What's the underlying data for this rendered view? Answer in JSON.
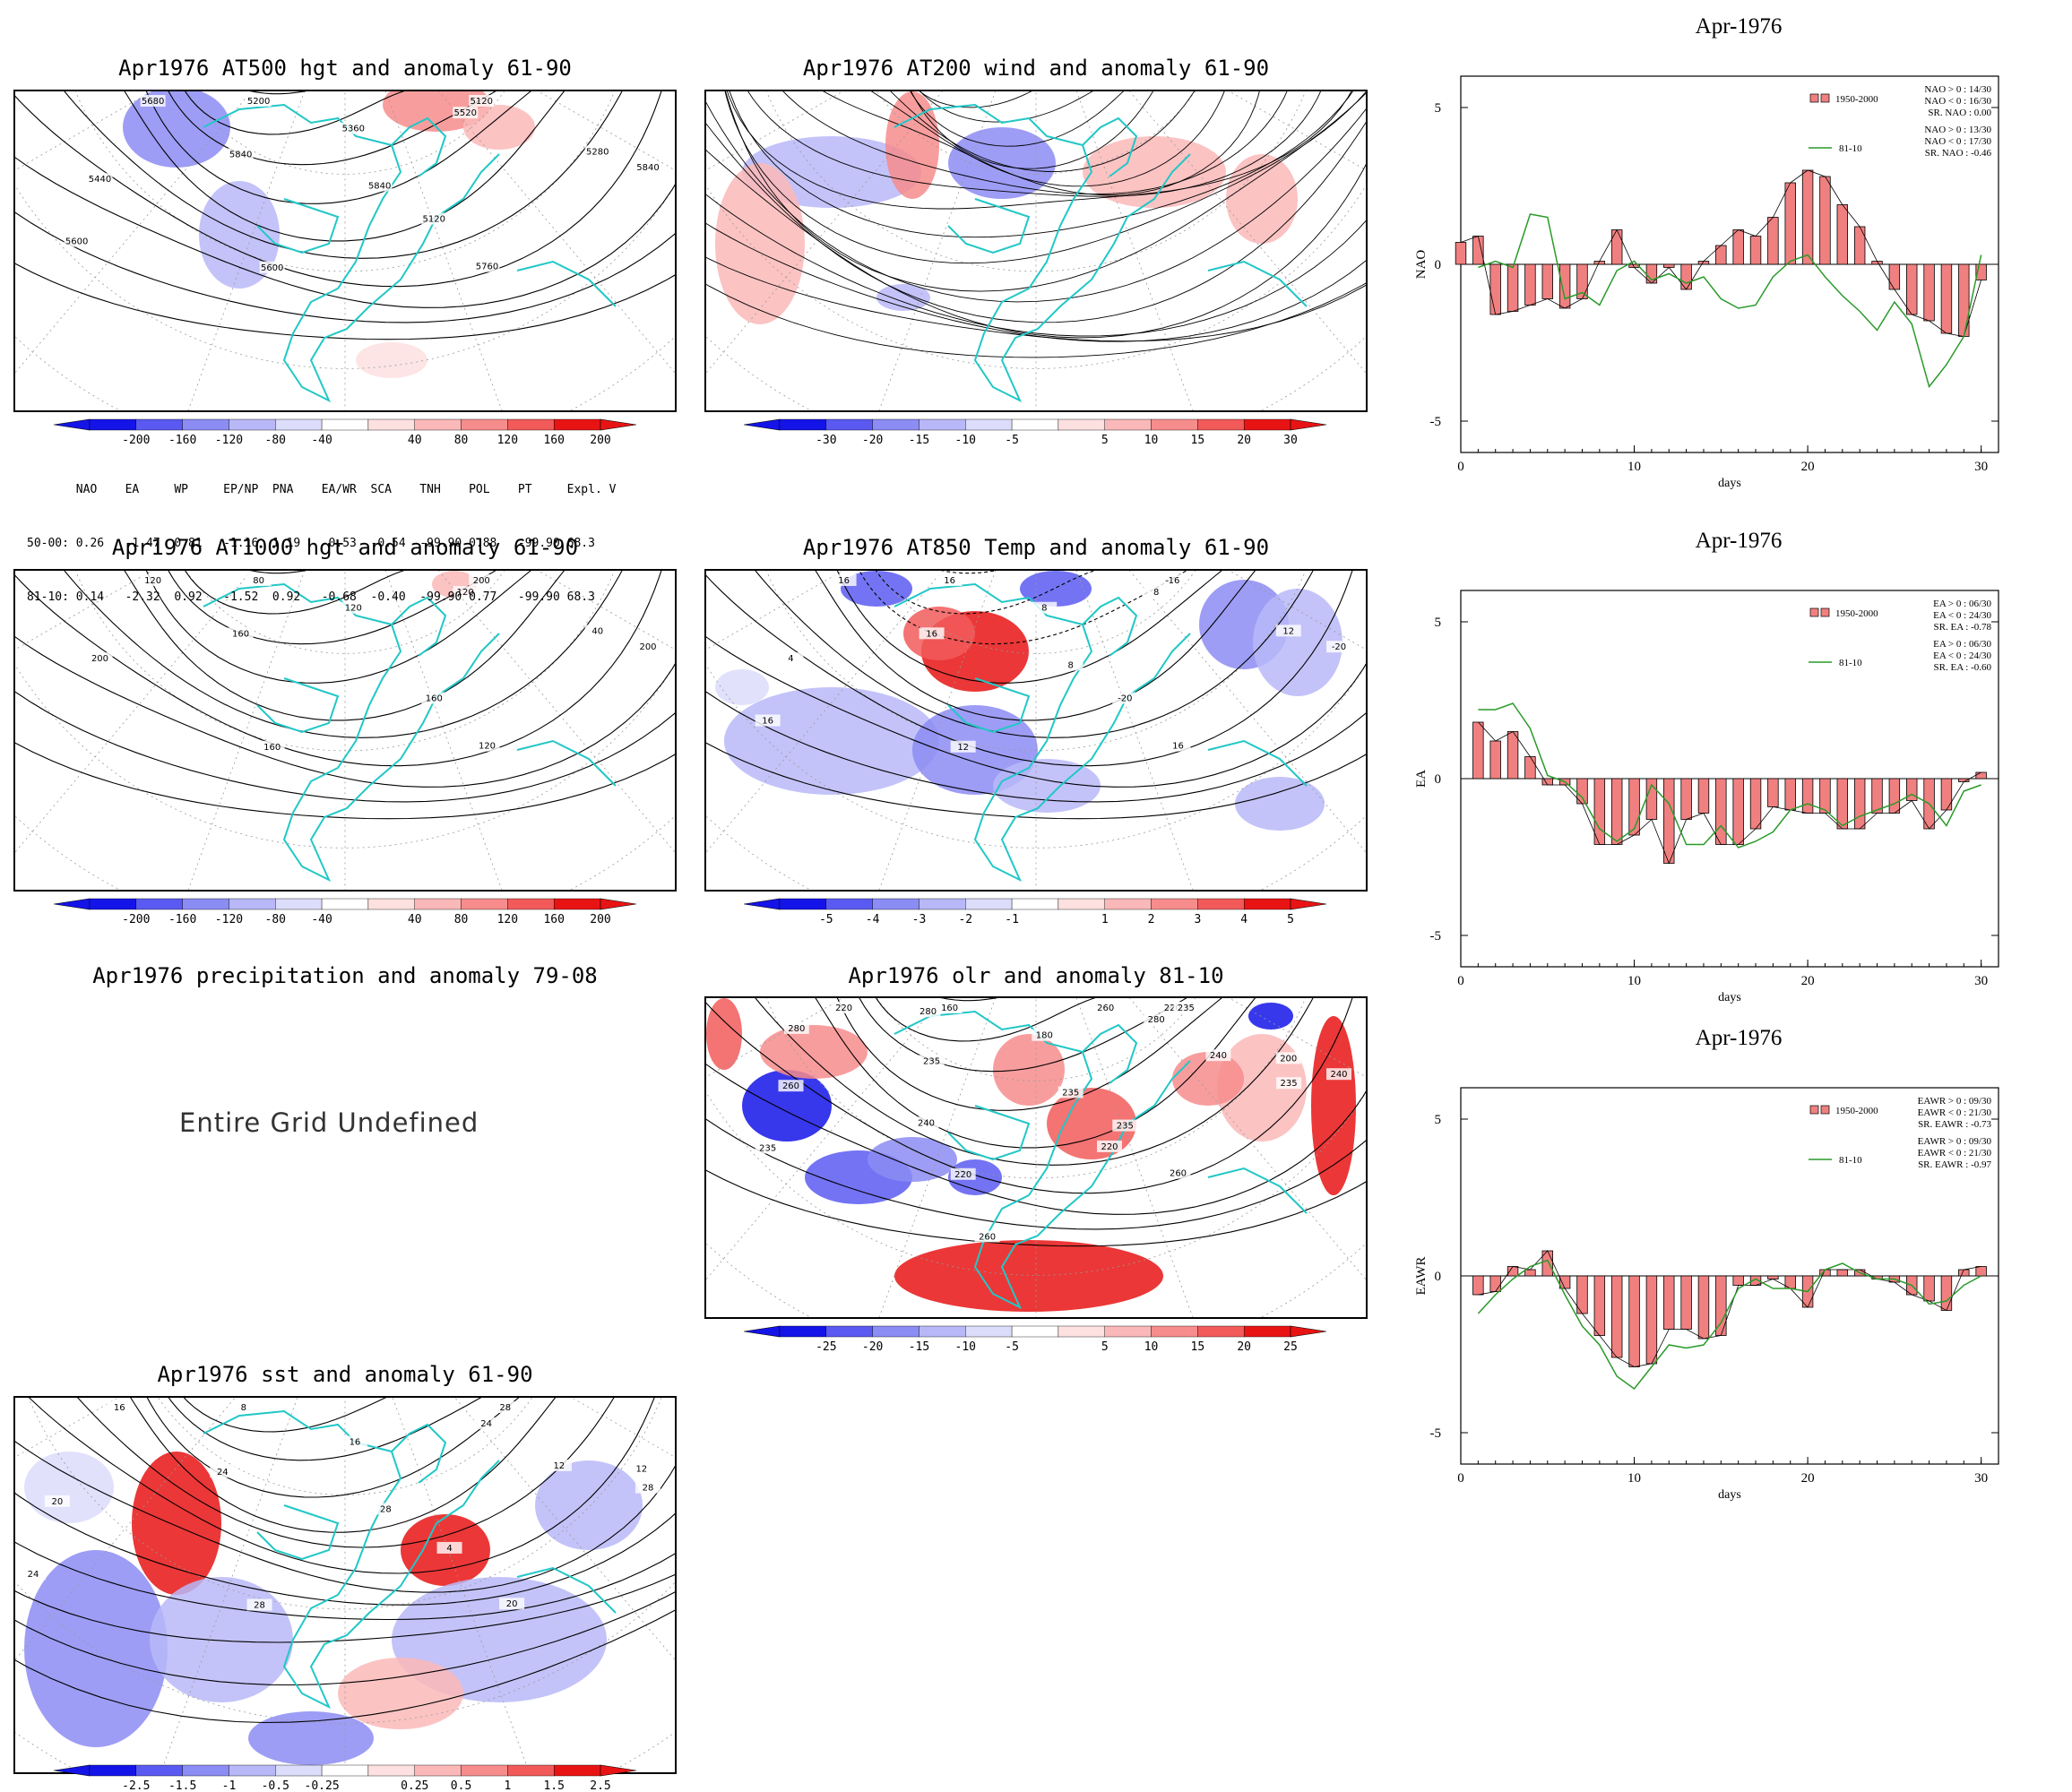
{
  "maps": [
    {
      "id": "hgt500",
      "title": "Apr1976 AT500 hgt and anomaly 61-90",
      "contour_labels": [
        "5120",
        "5120",
        "5200",
        "5280",
        "5360",
        "5440",
        "5520",
        "5600",
        "5680",
        "5760",
        "5840",
        "5840",
        "5840",
        "5600"
      ],
      "colorbar": [
        "-200",
        "-160",
        "-120",
        "-80",
        "-40",
        "40",
        "80",
        "120",
        "160",
        "200"
      ]
    },
    {
      "id": "wind200",
      "title": "Apr1976 AT200 wind and anomaly 61-90",
      "colorbar": [
        "-30",
        "-20",
        "-15",
        "-10",
        "-5",
        "5",
        "10",
        "15",
        "20",
        "30"
      ]
    },
    {
      "id": "hgt1000",
      "title": "Apr1976 AT1000 hgt and anomaly 61-90",
      "contour_labels": [
        "200",
        "160",
        "80",
        "40",
        "120",
        "200",
        "120",
        "160",
        "120",
        "120",
        "160",
        "200"
      ],
      "colorbar": [
        "-200",
        "-160",
        "-120",
        "-80",
        "-40",
        "40",
        "80",
        "120",
        "160",
        "200"
      ]
    },
    {
      "id": "temp850",
      "title": "Apr1976 AT850 Temp and anomaly 61-90",
      "contour_labels": [
        "-16",
        "-20",
        "16",
        "12",
        "8",
        "4",
        "8",
        "12",
        "16",
        "16",
        "16",
        "-20",
        "8",
        "16"
      ],
      "colorbar": [
        "-5",
        "-4",
        "-3",
        "-2",
        "-1",
        "1",
        "2",
        "3",
        "4",
        "5"
      ]
    },
    {
      "id": "precip",
      "title": "Apr1976 precipitation and anomaly 79-08",
      "undefined_text": "Entire Grid Undefined"
    },
    {
      "id": "olr",
      "title": "Apr1976 olr and anomaly 81-10",
      "contour_labels": [
        "220",
        "235",
        "160",
        "200",
        "180",
        "260",
        "280",
        "220",
        "220",
        "260",
        "235",
        "240",
        "235",
        "235",
        "240",
        "260",
        "280",
        "260",
        "240",
        "235",
        "220",
        "280",
        "235"
      ],
      "colorbar": [
        "-25",
        "-20",
        "-15",
        "-10",
        "-5",
        "5",
        "10",
        "15",
        "20",
        "25"
      ]
    },
    {
      "id": "sst",
      "title": "Apr1976 sst and anomaly 61-90",
      "contour_labels": [
        "28",
        "4",
        "8",
        "12",
        "16",
        "20",
        "24",
        "28",
        "16",
        "20",
        "24",
        "28",
        "28",
        "24",
        "12"
      ],
      "colorbar": [
        "-2.5",
        "-1.5",
        "-1",
        "-0.5",
        "-0.25",
        "0.25",
        "0.5",
        "1",
        "1.5",
        "2.5"
      ]
    }
  ],
  "index_table": {
    "header": [
      "NAO",
      "EA",
      "WP",
      "EP/NP",
      "PNA",
      "EA/WR",
      "SCA",
      "TNH",
      "POL",
      "PT",
      "Expl. Var."
    ],
    "rows": [
      {
        "label": "50-00:",
        "values": [
          "0.26",
          "-1.47",
          "0.81",
          "-1.16",
          "1.19",
          "-0.53",
          "-0.54",
          "-99.90",
          "0.88",
          "-99.90",
          "68.3"
        ]
      },
      {
        "label": "81-10:",
        "values": [
          "0.14",
          "-2.32",
          "0.92",
          "-1.52",
          "0.92",
          "-0.68",
          "-0.40",
          "-99.90",
          "0.77",
          "-99.90",
          "68.3"
        ]
      }
    ]
  },
  "colors": {
    "contour": "#000000",
    "coast": "#22c7c7",
    "neg_strong": "#1a1af0",
    "pos_strong": "#f01a1a",
    "bar": "#f08080",
    "line": "#2a9a2a"
  },
  "chart_data": [
    {
      "type": "bar",
      "title": "Apr-1976",
      "xlabel": "days",
      "ylabel": "NAO",
      "xlim": [
        0,
        31
      ],
      "ylim": [
        -6,
        6
      ],
      "xticks": [
        "0",
        "10",
        "20",
        "30"
      ],
      "yticks": [
        "-5",
        "0",
        "5"
      ],
      "legend": {
        "bars": "1950-2000",
        "line": "81-10",
        "bar_stats": [
          "NAO > 0 : 14/30",
          "NAO < 0 : 16/30",
          "SR. NAO : 0.00"
        ],
        "line_stats": [
          "NAO > 0 : 13/30",
          "NAO < 0 : 17/30",
          "SR. NAO : -0.46"
        ]
      },
      "series": [
        {
          "name": "1950-2000",
          "kind": "bar",
          "values": [
            0.7,
            0.9,
            -1.6,
            -1.5,
            -1.3,
            -1.1,
            -1.4,
            -1.1,
            0.1,
            1.1,
            -0.1,
            -0.6,
            -0.1,
            -0.8,
            0.1,
            0.6,
            1.1,
            0.9,
            1.5,
            2.6,
            3.0,
            2.8,
            1.9,
            1.2,
            0.1,
            -0.8,
            -1.6,
            -1.8,
            -2.2,
            -2.3,
            -0.5
          ]
        },
        {
          "name": "81-10",
          "kind": "line",
          "values": [
            null,
            -0.1,
            0.1,
            -0.1,
            1.6,
            1.5,
            -1.1,
            -0.9,
            -1.3,
            -0.2,
            0.1,
            -0.5,
            -0.3,
            -0.6,
            -0.4,
            -1.1,
            -1.4,
            -1.3,
            -0.4,
            0.1,
            0.3,
            -0.4,
            -1.0,
            -1.5,
            -2.1,
            -1.2,
            -1.9,
            -3.9,
            -3.2,
            -2.3,
            0.3
          ]
        }
      ]
    },
    {
      "type": "bar",
      "title": "Apr-1976",
      "xlabel": "days",
      "ylabel": "EA",
      "xlim": [
        0,
        31
      ],
      "ylim": [
        -6,
        6
      ],
      "xticks": [
        "0",
        "10",
        "20",
        "30"
      ],
      "yticks": [
        "-5",
        "0",
        "5"
      ],
      "legend": {
        "bars": "1950-2000",
        "line": "81-10",
        "bar_stats": [
          "EA > 0 : 06/30",
          "EA < 0 : 24/30",
          "SR. EA : -0.78"
        ],
        "line_stats": [
          "EA > 0 : 06/30",
          "EA < 0 : 24/30",
          "SR. EA : -0.60"
        ]
      },
      "series": [
        {
          "name": "1950-2000",
          "kind": "bar",
          "values": [
            null,
            1.8,
            1.2,
            1.5,
            0.7,
            -0.2,
            -0.2,
            -0.8,
            -2.1,
            -2.1,
            -1.8,
            -1.3,
            -2.7,
            -1.3,
            -1.1,
            -2.1,
            -2.1,
            -1.6,
            -0.9,
            -1.0,
            -1.1,
            -1.1,
            -1.6,
            -1.6,
            -1.1,
            -1.1,
            -0.7,
            -1.6,
            -1.0,
            -0.1,
            0.2
          ]
        },
        {
          "name": "81-10",
          "kind": "line",
          "values": [
            null,
            2.2,
            2.2,
            2.4,
            1.6,
            0.1,
            -0.1,
            -0.6,
            -1.6,
            -2.0,
            -1.6,
            -0.2,
            -0.8,
            -2.1,
            -2.1,
            -1.5,
            -2.2,
            -2.0,
            -1.7,
            -1.0,
            -0.8,
            -1.0,
            -1.5,
            -1.2,
            -1.0,
            -0.8,
            -0.5,
            -0.8,
            -1.5,
            -0.4,
            -0.2
          ]
        }
      ]
    },
    {
      "type": "bar",
      "title": "Apr-1976",
      "xlabel": "days",
      "ylabel": "EAWR",
      "xlim": [
        0,
        31
      ],
      "ylim": [
        -6,
        6
      ],
      "xticks": [
        "0",
        "10",
        "20",
        "30"
      ],
      "yticks": [
        "-5",
        "0",
        "5"
      ],
      "legend": {
        "bars": "1950-2000",
        "line": "81-10",
        "bar_stats": [
          "EAWR > 0 : 09/30",
          "EAWR < 0 : 21/30",
          "SR. EAWR : -0.73"
        ],
        "line_stats": [
          "EAWR > 0 : 09/30",
          "EAWR < 0 : 21/30",
          "SR. EAWR : -0.97"
        ]
      },
      "series": [
        {
          "name": "1950-2000",
          "kind": "bar",
          "values": [
            null,
            -0.6,
            -0.5,
            0.3,
            0.2,
            0.8,
            -0.4,
            -1.2,
            -1.9,
            -2.6,
            -2.9,
            -2.8,
            -1.7,
            -1.7,
            -2.0,
            -1.9,
            -0.3,
            -0.3,
            -0.1,
            -0.4,
            -1.0,
            0.2,
            0.2,
            0.2,
            -0.1,
            -0.2,
            -0.6,
            -0.8,
            -1.1,
            0.2,
            0.3
          ]
        },
        {
          "name": "81-10",
          "kind": "line",
          "values": [
            null,
            -1.2,
            -0.6,
            -0.1,
            0.3,
            0.5,
            -0.6,
            -1.6,
            -2.2,
            -3.2,
            -3.6,
            -2.9,
            -2.2,
            -2.3,
            -2.2,
            -1.5,
            -0.4,
            -0.1,
            -0.4,
            -0.4,
            -0.5,
            0.2,
            0.4,
            0.1,
            -0.1,
            -0.1,
            -0.3,
            -0.9,
            -0.8,
            -0.3,
            0.0
          ]
        }
      ]
    }
  ]
}
